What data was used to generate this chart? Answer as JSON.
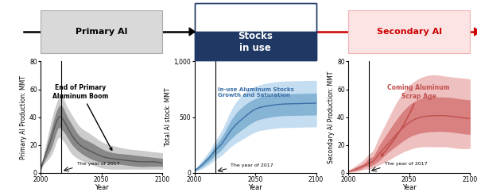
{
  "years": [
    2000,
    2005,
    2010,
    2015,
    2017,
    2020,
    2025,
    2030,
    2040,
    2050,
    2060,
    2070,
    2080,
    2090,
    2100
  ],
  "primary_mid": [
    3,
    15,
    28,
    40,
    40,
    36,
    28,
    22,
    16,
    12,
    10,
    9,
    8,
    8,
    7
  ],
  "primary_hi": [
    3,
    18,
    34,
    47,
    48,
    43,
    35,
    28,
    22,
    17,
    14,
    13,
    12,
    11,
    10
  ],
  "primary_lo": [
    3,
    12,
    22,
    33,
    32,
    29,
    22,
    17,
    11,
    8,
    7,
    6,
    5,
    5,
    5
  ],
  "primary_outerhi": [
    3,
    21,
    40,
    53,
    55,
    50,
    42,
    35,
    28,
    22,
    19,
    17,
    16,
    15,
    14
  ],
  "primary_outerlo": [
    3,
    9,
    16,
    26,
    25,
    22,
    15,
    11,
    7,
    4,
    3,
    3,
    3,
    3,
    3
  ],
  "stock_mid": [
    20,
    60,
    110,
    170,
    200,
    230,
    300,
    380,
    490,
    570,
    600,
    615,
    620,
    623,
    625
  ],
  "stock_hi": [
    20,
    70,
    130,
    200,
    235,
    275,
    360,
    460,
    590,
    660,
    690,
    700,
    705,
    708,
    710
  ],
  "stock_lo": [
    20,
    50,
    90,
    140,
    165,
    190,
    250,
    310,
    400,
    470,
    500,
    515,
    520,
    522,
    524
  ],
  "stock_outerhi": [
    20,
    85,
    155,
    235,
    275,
    325,
    425,
    545,
    700,
    770,
    800,
    815,
    820,
    823,
    825
  ],
  "stock_outerlo": [
    20,
    35,
    65,
    105,
    125,
    145,
    190,
    240,
    310,
    370,
    395,
    408,
    412,
    415,
    417
  ],
  "secondary_mid": [
    1,
    2,
    4,
    6,
    7,
    8,
    13,
    18,
    28,
    36,
    40,
    41,
    41,
    40,
    39
  ],
  "secondary_hi": [
    1,
    3,
    5,
    8,
    10,
    11,
    18,
    25,
    38,
    48,
    53,
    54,
    54,
    53,
    52
  ],
  "secondary_lo": [
    1,
    2,
    3,
    5,
    5,
    6,
    9,
    13,
    20,
    26,
    29,
    30,
    30,
    29,
    28
  ],
  "secondary_outerhi": [
    1,
    4,
    7,
    11,
    13,
    15,
    24,
    33,
    50,
    62,
    68,
    70,
    69,
    68,
    67
  ],
  "secondary_outerlo": [
    1,
    1,
    2,
    3,
    3,
    4,
    6,
    8,
    13,
    17,
    19,
    19,
    19,
    18,
    18
  ],
  "panel1_ylabel": "Primary Al Production: MMT",
  "panel2_ylabel": "Total Al stock: MMT",
  "panel3_ylabel": "Secondary Al Production: MMT",
  "xlabel": "Year",
  "panel1_ylim": [
    0,
    80
  ],
  "panel2_ylim": [
    0,
    1000
  ],
  "panel3_ylim": [
    0,
    80
  ],
  "panel1_yticks": [
    0,
    20,
    40,
    60,
    80
  ],
  "panel2_yticks": [
    0,
    500,
    1000
  ],
  "panel3_yticks": [
    0,
    20,
    40,
    60,
    80
  ],
  "panel2_ytick_labels": [
    "0",
    "500",
    "1,000"
  ],
  "xticks": [
    2000,
    2050,
    2100
  ],
  "year_2017": 2017,
  "label1": "End of Primary\nAluminum Boom",
  "label2": "In-use Aluminum Stocks\nGrowth and Saturation",
  "label3": "Coming Aluminum\nScrap Age",
  "label_year": "The year of 2017",
  "header_left_text": "Primary Al",
  "header_center_text": "Stocks\nin use",
  "header_right_text": "Secondary Al",
  "color_primary_dark": "#555555",
  "color_primary_mid": "#888888",
  "color_primary_light": "#cccccc",
  "color_stock_dark": "#3a6fa8",
  "color_stock_mid": "#85b4d4",
  "color_stock_light": "#c5ddf0",
  "color_secondary_dark": "#c0504d",
  "color_secondary_mid": "#d98080",
  "color_secondary_light": "#efc0c0",
  "header_left_bg": "#d9d9d9",
  "header_center_bg": "#1f3864",
  "header_right_bg": "#fce4e4",
  "arrow_black": "#000000",
  "arrow_red": "#cc0000"
}
